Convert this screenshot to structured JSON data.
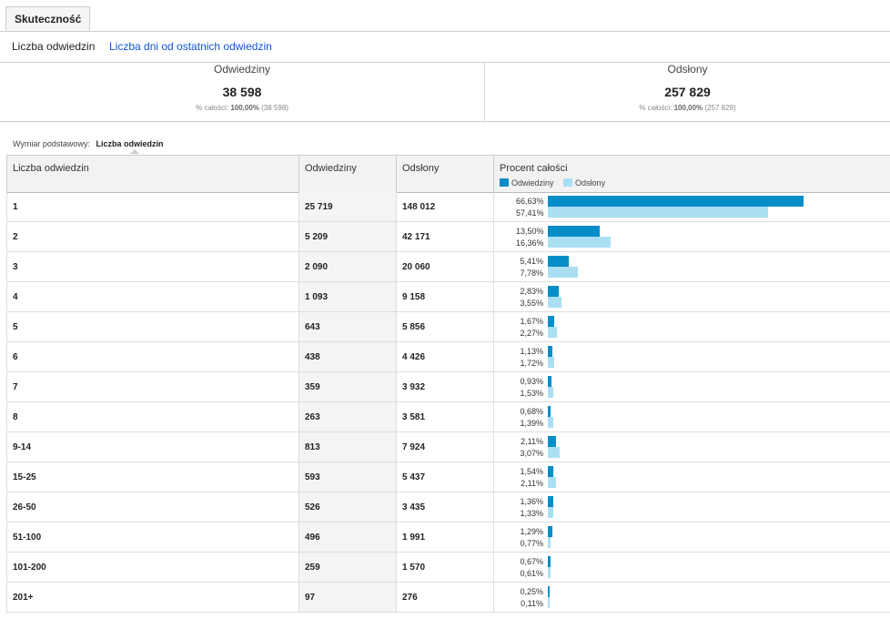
{
  "tab": {
    "label": "Skuteczność"
  },
  "subnav": {
    "active": "Liczba odwiedzin",
    "link": "Liczba dni od ostatnich odwiedzin"
  },
  "summary": [
    {
      "label": "Odwiedziny",
      "value": "38 598",
      "sub_prefix": "% całości:",
      "sub_pct": "100,00%",
      "sub_total": "(38 598)"
    },
    {
      "label": "Odsłony",
      "value": "257 829",
      "sub_prefix": "% całości:",
      "sub_pct": "100,00%",
      "sub_total": "(257 829)"
    }
  ],
  "dimension": {
    "label": "Wymiar podstawowy:",
    "value": "Liczba odwiedzin"
  },
  "table": {
    "headers": [
      "Liczba odwiedzin",
      "Odwiedziny",
      "Odsłony",
      "Procent całości"
    ],
    "legend": [
      "Odwiedziny",
      "Odsłony"
    ],
    "colors": {
      "visits": "#058dc7",
      "pageviews": "#aadff3"
    },
    "rows": [
      {
        "dim": "1",
        "visits": "25 719",
        "pageviews": "148 012",
        "pv1": "66,63%",
        "pv2": "57,41%",
        "f1": 66.63,
        "f2": 57.41
      },
      {
        "dim": "2",
        "visits": "5 209",
        "pageviews": "42 171",
        "pv1": "13,50%",
        "pv2": "16,36%",
        "f1": 13.5,
        "f2": 16.36
      },
      {
        "dim": "3",
        "visits": "2 090",
        "pageviews": "20 060",
        "pv1": "5,41%",
        "pv2": "7,78%",
        "f1": 5.41,
        "f2": 7.78
      },
      {
        "dim": "4",
        "visits": "1 093",
        "pageviews": "9 158",
        "pv1": "2,83%",
        "pv2": "3,55%",
        "f1": 2.83,
        "f2": 3.55
      },
      {
        "dim": "5",
        "visits": "643",
        "pageviews": "5 856",
        "pv1": "1,67%",
        "pv2": "2,27%",
        "f1": 1.67,
        "f2": 2.27
      },
      {
        "dim": "6",
        "visits": "438",
        "pageviews": "4 426",
        "pv1": "1,13%",
        "pv2": "1,72%",
        "f1": 1.13,
        "f2": 1.72
      },
      {
        "dim": "7",
        "visits": "359",
        "pageviews": "3 932",
        "pv1": "0,93%",
        "pv2": "1,53%",
        "f1": 0.93,
        "f2": 1.53
      },
      {
        "dim": "8",
        "visits": "263",
        "pageviews": "3 581",
        "pv1": "0,68%",
        "pv2": "1,39%",
        "f1": 0.68,
        "f2": 1.39
      },
      {
        "dim": "9-14",
        "visits": "813",
        "pageviews": "7 924",
        "pv1": "2,11%",
        "pv2": "3,07%",
        "f1": 2.11,
        "f2": 3.07
      },
      {
        "dim": "15-25",
        "visits": "593",
        "pageviews": "5 437",
        "pv1": "1,54%",
        "pv2": "2,11%",
        "f1": 1.54,
        "f2": 2.11
      },
      {
        "dim": "26-50",
        "visits": "526",
        "pageviews": "3 435",
        "pv1": "1,36%",
        "pv2": "1,33%",
        "f1": 1.36,
        "f2": 1.33
      },
      {
        "dim": "51-100",
        "visits": "496",
        "pageviews": "1 991",
        "pv1": "1,29%",
        "pv2": "0,77%",
        "f1": 1.29,
        "f2": 0.77
      },
      {
        "dim": "101-200",
        "visits": "259",
        "pageviews": "1 570",
        "pv1": "0,67%",
        "pv2": "0,61%",
        "f1": 0.67,
        "f2": 0.61
      },
      {
        "dim": "201+",
        "visits": "97",
        "pageviews": "276",
        "pv1": "0,25%",
        "pv2": "0,11%",
        "f1": 0.25,
        "f2": 0.11
      }
    ]
  }
}
